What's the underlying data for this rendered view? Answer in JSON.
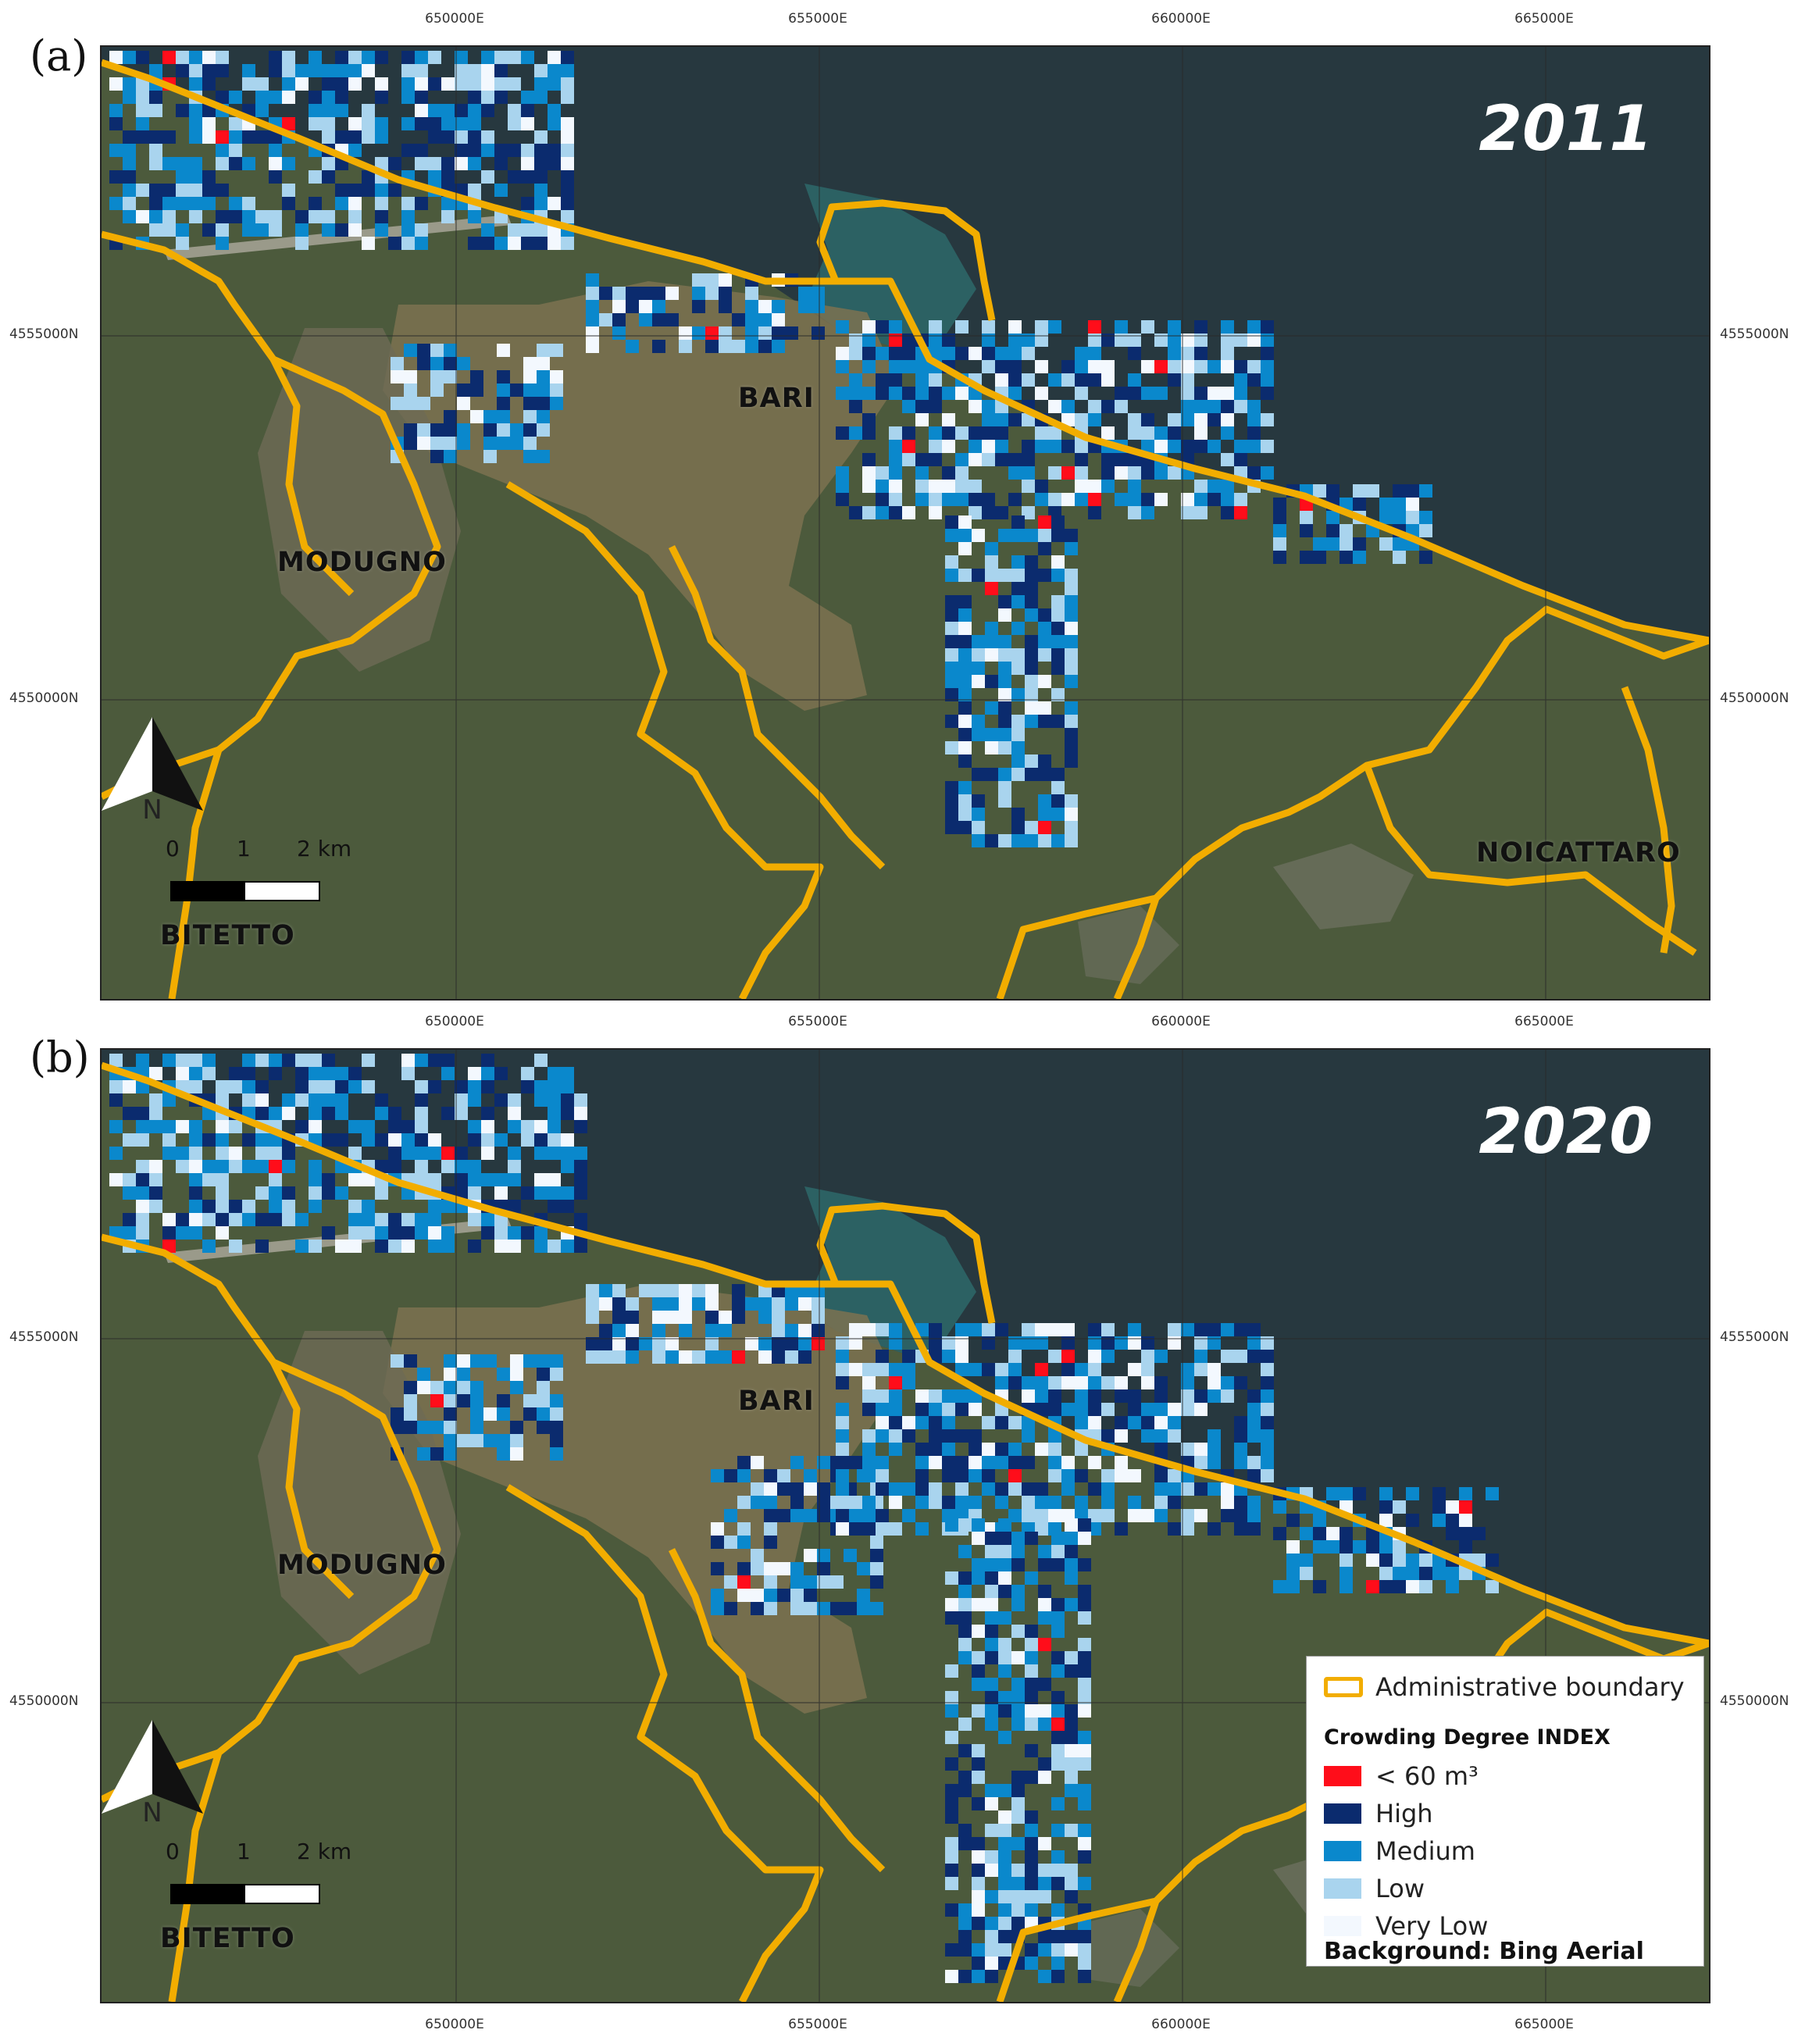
{
  "panels": [
    {
      "label": "(a)",
      "year": "2011",
      "x_ticks": [
        "650000E",
        "655000E",
        "660000E",
        "665000E"
      ],
      "y_ticks": [
        "4555000N",
        "4550000N"
      ],
      "places": [
        "BARI",
        "MODUGNO",
        "NOICATTARO",
        "BITETTO"
      ],
      "scale": {
        "labels": [
          "0",
          "1",
          "2 km"
        ]
      },
      "north_label": "N"
    },
    {
      "label": "(b)",
      "year": "2020",
      "x_ticks": [
        "650000E",
        "655000E",
        "660000E",
        "665000E"
      ],
      "y_ticks": [
        "4555000N",
        "4550000N"
      ],
      "places": [
        "BARI",
        "MODUGNO",
        "BITETTO"
      ],
      "scale": {
        "labels": [
          "0",
          "1",
          "2 km"
        ]
      },
      "north_label": "N"
    }
  ],
  "legend": {
    "boundary_label": "Administrative boundary",
    "index_title": "Crowding Degree INDEX",
    "classes": [
      {
        "label": "< 60 m³",
        "color": "#ff0d1a"
      },
      {
        "label": "High",
        "color": "#0b2b6e"
      },
      {
        "label": "Medium",
        "color": "#0a88cc"
      },
      {
        "label": "Low",
        "color": "#a9d4ee"
      },
      {
        "label": "Very Low",
        "color": "#f3f8fe"
      }
    ],
    "background_note": "Background: Bing Aerial"
  },
  "colors": {
    "boundary": "#f2ad00",
    "sea": "#27383f",
    "land": "#4c5a3c",
    "urban": "#7d7250"
  }
}
